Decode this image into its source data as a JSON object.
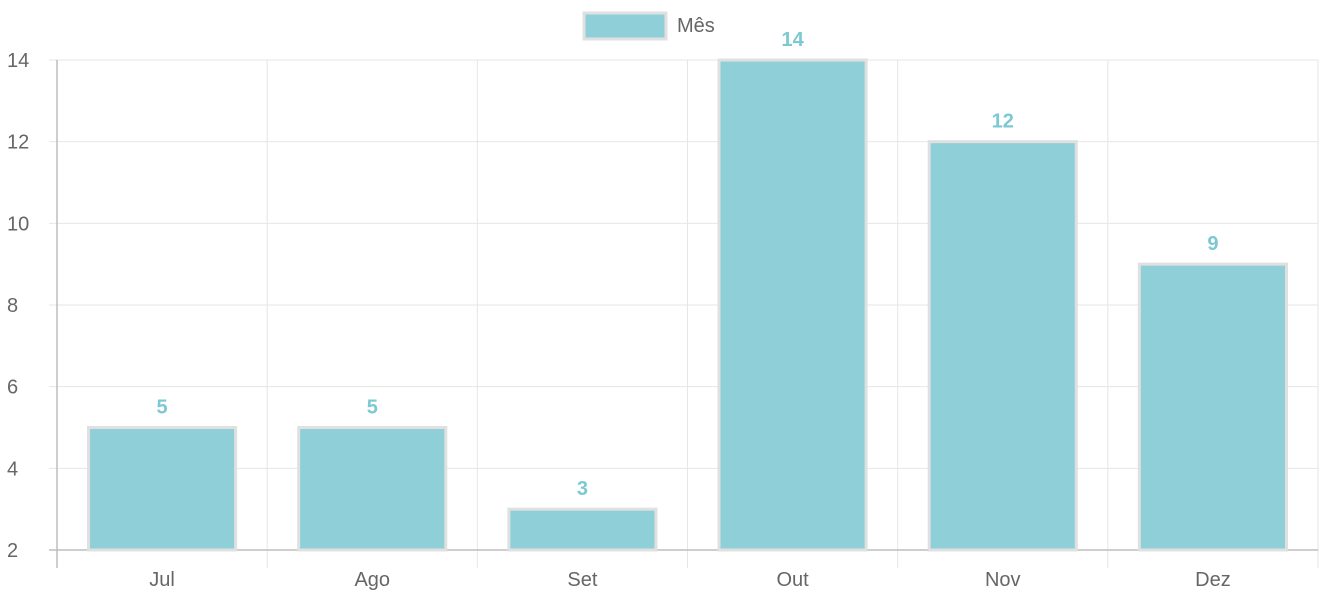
{
  "chart_data": {
    "type": "bar",
    "categories": [
      "Jul",
      "Ago",
      "Set",
      "Out",
      "Nov",
      "Dez"
    ],
    "series": [
      {
        "name": "Mês",
        "values": [
          5,
          5,
          3,
          14,
          12,
          9
        ]
      }
    ],
    "title": "",
    "xlabel": "",
    "ylabel": "",
    "ylim": [
      2,
      14
    ],
    "yticks": [
      2,
      4,
      6,
      8,
      10,
      12,
      14
    ],
    "grid": true,
    "legend_position": "top",
    "data_labels": true,
    "colors": {
      "bar_fill": "#8fd0d8",
      "bar_border": "#e0e0e0",
      "data_label": "#7cc8d3",
      "grid": "#e6e6e6",
      "axis": "#bdbdbd",
      "text": "#666666"
    }
  }
}
